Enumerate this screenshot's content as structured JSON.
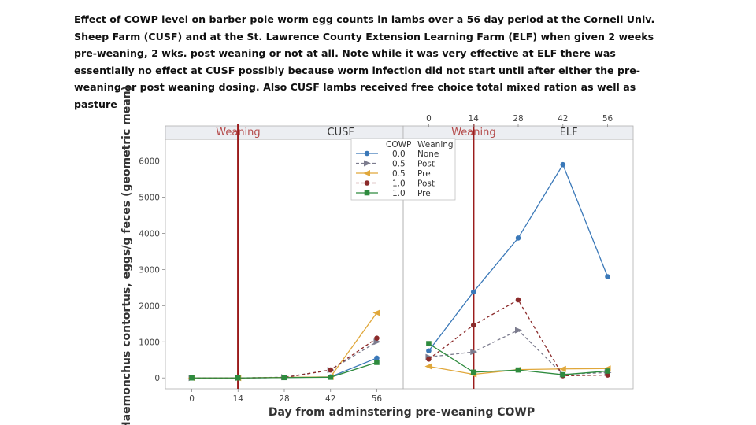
{
  "caption": "Effect of COWP level on barber pole worm egg counts in lambs over a 56 day period at the Cornell Univ. Sheep Farm (CUSF) and at the St. Lawrence County Extension Learning Farm (ELF) when given 2 weeks pre-weaning, 2 wks. post weaning or not at all. Note while it was very effective at ELF there was essentially no effect at CUSF possibly because worm infection did not start until after either the pre-weaning or post weaning dosing. Also CUSF lambs received free choice total mixed ration as well as pasture.",
  "chart_data": {
    "type": "line",
    "ylabel": "Haemonchus contortus, eggs/g feces (geometric mean)",
    "xlabel": "Day from adminstering pre-weaning COWP",
    "ylim": [
      -300,
      6600
    ],
    "yticks": [
      0,
      1000,
      2000,
      3000,
      4000,
      5000,
      6000
    ],
    "xticks": [
      0,
      14,
      28,
      42,
      56
    ],
    "xlim": [
      -8,
      64
    ],
    "weaning_day": 14,
    "weaning_label": "Weaning",
    "grid": false,
    "legend_placement": "top-center",
    "legend_header": [
      "COWP",
      "Weaning"
    ],
    "panels": [
      {
        "name": "CUSF",
        "series": [
          {
            "name": "0.0 None",
            "cowp": "0.0",
            "weaning": "None",
            "color": "#3a78b8",
            "marker": "circle",
            "x": [
              0,
              14,
              28,
              42,
              56
            ],
            "y": [
              0,
              0,
              10,
              30,
              550
            ]
          },
          {
            "name": "0.5 Post",
            "cowp": "0.5",
            "weaning": "Post",
            "color": "#7c7c8e",
            "marker": "triangle-right",
            "x": [
              0,
              14,
              28,
              42,
              56
            ],
            "y": [
              0,
              0,
              20,
              220,
              1000
            ]
          },
          {
            "name": "0.5 Pre",
            "cowp": "0.5",
            "weaning": "Pre",
            "color": "#e0a73a",
            "marker": "triangle-left",
            "x": [
              0,
              14,
              28,
              42,
              56
            ],
            "y": [
              0,
              0,
              15,
              30,
              1800
            ]
          },
          {
            "name": "1.0 Post",
            "cowp": "1.0",
            "weaning": "Post",
            "color": "#8b2a2a",
            "marker": "circle",
            "x": [
              0,
              14,
              28,
              42,
              56
            ],
            "y": [
              0,
              0,
              10,
              220,
              1100
            ]
          },
          {
            "name": "1.0 Pre",
            "cowp": "1.0",
            "weaning": "Pre",
            "color": "#2e8b3e",
            "marker": "square",
            "x": [
              0,
              14,
              28,
              42,
              56
            ],
            "y": [
              0,
              0,
              10,
              20,
              430
            ]
          }
        ]
      },
      {
        "name": "ELF",
        "series": [
          {
            "name": "0.0 None",
            "cowp": "0.0",
            "weaning": "None",
            "color": "#3a78b8",
            "marker": "circle",
            "x": [
              0,
              14,
              28,
              42,
              56
            ],
            "y": [
              750,
              2380,
              3870,
              5900,
              2800
            ]
          },
          {
            "name": "0.5 Post",
            "cowp": "0.5",
            "weaning": "Post",
            "color": "#7c7c8e",
            "marker": "triangle-right",
            "x": [
              0,
              14,
              28,
              42,
              56
            ],
            "y": [
              580,
              720,
              1320,
              100,
              150
            ]
          },
          {
            "name": "0.5 Pre",
            "cowp": "0.5",
            "weaning": "Pre",
            "color": "#e0a73a",
            "marker": "triangle-left",
            "x": [
              0,
              14,
              28,
              42,
              56
            ],
            "y": [
              320,
              100,
              230,
              250,
              260
            ]
          },
          {
            "name": "1.0 Post",
            "cowp": "1.0",
            "weaning": "Post",
            "color": "#8b2a2a",
            "marker": "circle",
            "x": [
              0,
              14,
              28,
              42,
              56
            ],
            "y": [
              520,
              1460,
              2160,
              60,
              80
            ]
          },
          {
            "name": "1.0 Pre",
            "cowp": "1.0",
            "weaning": "Pre",
            "color": "#2e8b3e",
            "marker": "square",
            "x": [
              0,
              14,
              28,
              42,
              56
            ],
            "y": [
              950,
              160,
              220,
              90,
              190
            ]
          }
        ]
      }
    ]
  }
}
